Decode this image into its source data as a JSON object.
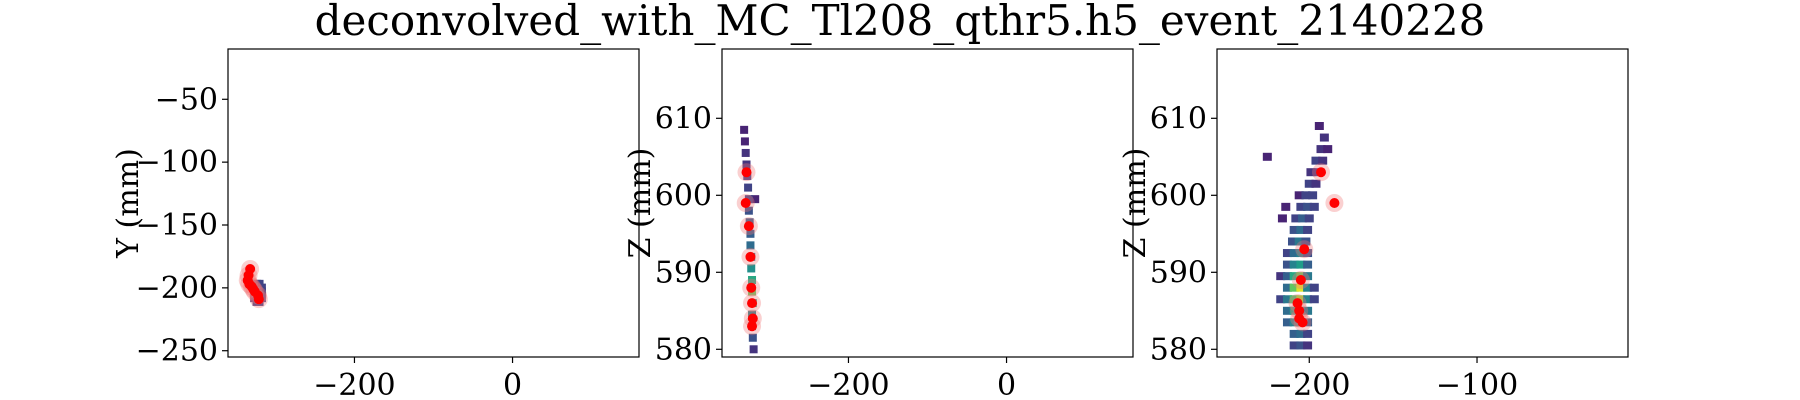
{
  "figure": {
    "title": "deconvolved_with_MC_Tl208_qthr5.h5_event_2140228"
  },
  "chart_data": [
    {
      "type": "heatmap",
      "xlabel": "",
      "ylabel": "Y (mm)",
      "xlim": [
        -360,
        160
      ],
      "ylim": [
        -255,
        -10
      ],
      "xticks": [
        -200,
        0
      ],
      "yticks": [
        -50,
        -100,
        -150,
        -200,
        -250
      ],
      "xtick_labels": [
        "−200",
        "0"
      ],
      "ytick_labels": [
        "−50",
        "−100",
        "−150",
        "−200",
        "−250"
      ],
      "heat_cells": [
        {
          "x": -325,
          "y": -198,
          "v": 0.2
        },
        {
          "x": -322,
          "y": -198,
          "v": 0.2
        },
        {
          "x": -325,
          "y": -201,
          "v": 0.3
        },
        {
          "x": -322,
          "y": -201,
          "v": 0.3
        },
        {
          "x": -319,
          "y": -201,
          "v": 0.2
        },
        {
          "x": -325,
          "y": -204,
          "v": 0.3
        },
        {
          "x": -322,
          "y": -204,
          "v": 0.4
        },
        {
          "x": -319,
          "y": -204,
          "v": 0.2
        },
        {
          "x": -325,
          "y": -207,
          "v": 0.2
        },
        {
          "x": -322,
          "y": -207,
          "v": 0.3
        },
        {
          "x": -319,
          "y": -207,
          "v": 0.2
        },
        {
          "x": -322,
          "y": -210,
          "v": 0.2
        }
      ],
      "mc_hits": [
        {
          "x": -332,
          "y": -185
        },
        {
          "x": -334,
          "y": -190
        },
        {
          "x": -335,
          "y": -194
        },
        {
          "x": -333,
          "y": -197
        },
        {
          "x": -330,
          "y": -199
        },
        {
          "x": -328,
          "y": -201
        },
        {
          "x": -326,
          "y": -203
        },
        {
          "x": -322,
          "y": -206
        },
        {
          "x": -321,
          "y": -209
        }
      ]
    },
    {
      "type": "heatmap",
      "xlabel": "",
      "ylabel": "Z (mm)",
      "xlim": [
        -360,
        160
      ],
      "ylim": [
        579,
        619
      ],
      "xticks": [
        -200,
        0
      ],
      "yticks": [
        580,
        590,
        600,
        610
      ],
      "xtick_labels": [
        "−200",
        "0"
      ],
      "ytick_labels": [
        "580",
        "590",
        "600",
        "610"
      ],
      "heat_cells": [
        {
          "x": -332,
          "y": 608.5,
          "v": 0.1
        },
        {
          "x": -331,
          "y": 607,
          "v": 0.1
        },
        {
          "x": -330,
          "y": 605.5,
          "v": 0.15
        },
        {
          "x": -329,
          "y": 604,
          "v": 0.15
        },
        {
          "x": -328,
          "y": 602.5,
          "v": 0.2
        },
        {
          "x": -327,
          "y": 601,
          "v": 0.2
        },
        {
          "x": -318,
          "y": 599.5,
          "v": 0.1
        },
        {
          "x": -326,
          "y": 599.5,
          "v": 0.2
        },
        {
          "x": -326,
          "y": 598,
          "v": 0.25
        },
        {
          "x": -325,
          "y": 596.5,
          "v": 0.3
        },
        {
          "x": -324,
          "y": 595,
          "v": 0.3
        },
        {
          "x": -324,
          "y": 593.5,
          "v": 0.35
        },
        {
          "x": -323,
          "y": 592,
          "v": 0.4
        },
        {
          "x": -323,
          "y": 590.5,
          "v": 0.5
        },
        {
          "x": -322,
          "y": 589,
          "v": 0.6
        },
        {
          "x": -322,
          "y": 587.5,
          "v": 0.75
        },
        {
          "x": -321,
          "y": 586,
          "v": 0.55
        },
        {
          "x": -322,
          "y": 584.5,
          "v": 0.45
        },
        {
          "x": -322,
          "y": 583,
          "v": 0.35
        },
        {
          "x": -321,
          "y": 581.5,
          "v": 0.25
        },
        {
          "x": -320,
          "y": 580,
          "v": 0.15
        }
      ],
      "mc_hits": [
        {
          "x": -329,
          "y": 603
        },
        {
          "x": -330,
          "y": 599
        },
        {
          "x": -326,
          "y": 596
        },
        {
          "x": -324,
          "y": 592
        },
        {
          "x": -323,
          "y": 588
        },
        {
          "x": -322,
          "y": 586
        },
        {
          "x": -321,
          "y": 584
        },
        {
          "x": -322,
          "y": 583
        }
      ]
    },
    {
      "type": "heatmap",
      "xlabel": "",
      "ylabel": "Z (mm)",
      "xlim": [
        -255,
        -10
      ],
      "ylim": [
        579,
        619
      ],
      "xticks": [
        -200,
        -100
      ],
      "yticks": [
        580,
        590,
        600,
        610
      ],
      "xtick_labels": [
        "−200",
        "−100"
      ],
      "ytick_labels": [
        "580",
        "590",
        "600",
        "610"
      ],
      "heat_cells": [
        {
          "x": -225,
          "y": 605,
          "v": 0.1
        },
        {
          "x": -194,
          "y": 609,
          "v": 0.1
        },
        {
          "x": -191,
          "y": 607.5,
          "v": 0.15
        },
        {
          "x": -193,
          "y": 606,
          "v": 0.15
        },
        {
          "x": -189,
          "y": 606,
          "v": 0.1
        },
        {
          "x": -196,
          "y": 604.5,
          "v": 0.2
        },
        {
          "x": -192,
          "y": 604.5,
          "v": 0.15
        },
        {
          "x": -199,
          "y": 603,
          "v": 0.15
        },
        {
          "x": -195,
          "y": 603,
          "v": 0.15
        },
        {
          "x": -200,
          "y": 601.5,
          "v": 0.2
        },
        {
          "x": -196,
          "y": 601.5,
          "v": 0.15
        },
        {
          "x": -206,
          "y": 600,
          "v": 0.1
        },
        {
          "x": -202,
          "y": 600,
          "v": 0.2
        },
        {
          "x": -198,
          "y": 600,
          "v": 0.2
        },
        {
          "x": -214,
          "y": 598.5,
          "v": 0.1
        },
        {
          "x": -205,
          "y": 598.5,
          "v": 0.2
        },
        {
          "x": -201,
          "y": 598.5,
          "v": 0.25
        },
        {
          "x": -197,
          "y": 598.5,
          "v": 0.2
        },
        {
          "x": -216,
          "y": 597,
          "v": 0.1
        },
        {
          "x": -208,
          "y": 597,
          "v": 0.2
        },
        {
          "x": -204,
          "y": 597,
          "v": 0.3
        },
        {
          "x": -200,
          "y": 597,
          "v": 0.2
        },
        {
          "x": -209,
          "y": 595.5,
          "v": 0.25
        },
        {
          "x": -205,
          "y": 595.5,
          "v": 0.35
        },
        {
          "x": -201,
          "y": 595.5,
          "v": 0.2
        },
        {
          "x": -210,
          "y": 594,
          "v": 0.25
        },
        {
          "x": -206,
          "y": 594,
          "v": 0.4
        },
        {
          "x": -202,
          "y": 594,
          "v": 0.25
        },
        {
          "x": -213,
          "y": 592.5,
          "v": 0.2
        },
        {
          "x": -209,
          "y": 592.5,
          "v": 0.35
        },
        {
          "x": -205,
          "y": 592.5,
          "v": 0.45
        },
        {
          "x": -201,
          "y": 592.5,
          "v": 0.25
        },
        {
          "x": -213,
          "y": 591,
          "v": 0.25
        },
        {
          "x": -209,
          "y": 591,
          "v": 0.45
        },
        {
          "x": -205,
          "y": 591,
          "v": 0.55
        },
        {
          "x": -201,
          "y": 591,
          "v": 0.3
        },
        {
          "x": -217,
          "y": 589.5,
          "v": 0.15
        },
        {
          "x": -213,
          "y": 589.5,
          "v": 0.3
        },
        {
          "x": -209,
          "y": 589.5,
          "v": 0.6
        },
        {
          "x": -205,
          "y": 589.5,
          "v": 0.75
        },
        {
          "x": -201,
          "y": 589.5,
          "v": 0.4
        },
        {
          "x": -213,
          "y": 588,
          "v": 0.35
        },
        {
          "x": -209,
          "y": 588,
          "v": 0.75
        },
        {
          "x": -205,
          "y": 588,
          "v": 0.95
        },
        {
          "x": -201,
          "y": 588,
          "v": 0.45
        },
        {
          "x": -197,
          "y": 588,
          "v": 0.2
        },
        {
          "x": -217,
          "y": 586.5,
          "v": 0.2
        },
        {
          "x": -213,
          "y": 586.5,
          "v": 0.4
        },
        {
          "x": -209,
          "y": 586.5,
          "v": 0.7
        },
        {
          "x": -205,
          "y": 586.5,
          "v": 0.85
        },
        {
          "x": -201,
          "y": 586.5,
          "v": 0.45
        },
        {
          "x": -197,
          "y": 586.5,
          "v": 0.2
        },
        {
          "x": -213,
          "y": 585,
          "v": 0.35
        },
        {
          "x": -209,
          "y": 585,
          "v": 0.55
        },
        {
          "x": -205,
          "y": 585,
          "v": 0.65
        },
        {
          "x": -201,
          "y": 585,
          "v": 0.4
        },
        {
          "x": -213,
          "y": 583.5,
          "v": 0.3
        },
        {
          "x": -209,
          "y": 583.5,
          "v": 0.45
        },
        {
          "x": -205,
          "y": 583.5,
          "v": 0.5
        },
        {
          "x": -201,
          "y": 583.5,
          "v": 0.3
        },
        {
          "x": -209,
          "y": 582,
          "v": 0.3
        },
        {
          "x": -205,
          "y": 582,
          "v": 0.35
        },
        {
          "x": -201,
          "y": 582,
          "v": 0.2
        },
        {
          "x": -209,
          "y": 580.5,
          "v": 0.2
        },
        {
          "x": -205,
          "y": 580.5,
          "v": 0.25
        },
        {
          "x": -201,
          "y": 580.5,
          "v": 0.15
        }
      ],
      "mc_hits": [
        {
          "x": -193,
          "y": 603
        },
        {
          "x": -185,
          "y": 599
        },
        {
          "x": -203,
          "y": 593
        },
        {
          "x": -205,
          "y": 589
        },
        {
          "x": -207,
          "y": 586
        },
        {
          "x": -206,
          "y": 585
        },
        {
          "x": -206,
          "y": 584
        },
        {
          "x": -204,
          "y": 583.5
        }
      ]
    }
  ]
}
